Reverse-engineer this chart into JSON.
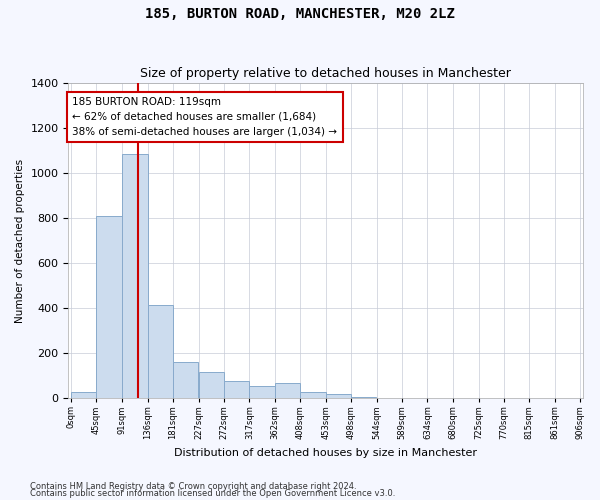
{
  "title": "185, BURTON ROAD, MANCHESTER, M20 2LZ",
  "subtitle": "Size of property relative to detached houses in Manchester",
  "xlabel": "Distribution of detached houses by size in Manchester",
  "ylabel": "Number of detached properties",
  "footnote1": "Contains HM Land Registry data © Crown copyright and database right 2024.",
  "footnote2": "Contains public sector information licensed under the Open Government Licence v3.0.",
  "property_label": "185 BURTON ROAD: 119sqm",
  "annotation_line1": "← 62% of detached houses are smaller (1,684)",
  "annotation_line2": "38% of semi-detached houses are larger (1,034) →",
  "property_size": 119,
  "bar_bins": [
    0,
    45,
    91,
    136,
    181,
    227,
    272,
    317,
    362,
    408,
    453,
    498,
    544,
    589,
    634,
    680,
    725,
    770,
    815,
    861,
    906
  ],
  "bar_heights": [
    30,
    810,
    1085,
    415,
    160,
    115,
    75,
    55,
    70,
    30,
    20,
    5,
    0,
    0,
    0,
    0,
    0,
    0,
    0,
    0
  ],
  "bar_color": "#ccdcee",
  "bar_edge_color": "#88aacc",
  "vline_color": "#cc0000",
  "vline_x": 119,
  "ylim": [
    0,
    1400
  ],
  "yticks": [
    0,
    200,
    400,
    600,
    800,
    1000,
    1200,
    1400
  ],
  "plot_bg_color": "#ffffff",
  "fig_bg_color": "#f5f7ff",
  "annotation_box_color": "#cc0000",
  "annotation_box_bg": "#ffffff",
  "grid_color": "#c8ccd8",
  "title_fontsize": 10,
  "subtitle_fontsize": 9
}
